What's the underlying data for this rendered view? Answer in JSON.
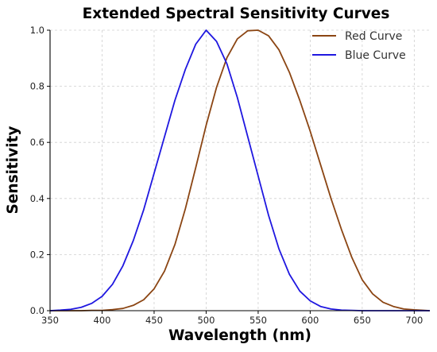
{
  "chart_data": {
    "type": "line",
    "title": "Extended Spectral Sensitivity Curves",
    "xlabel": "Wavelength (nm)",
    "ylabel": "Sensitivity",
    "xlim": [
      350,
      715
    ],
    "ylim": [
      0,
      1.0
    ],
    "xticks": [
      350,
      400,
      450,
      500,
      550,
      600,
      650,
      700
    ],
    "yticks": [
      0.0,
      0.2,
      0.4,
      0.6,
      0.8,
      1.0
    ],
    "xtick_labels": [
      "350",
      "400",
      "450",
      "500",
      "550",
      "600",
      "650",
      "700"
    ],
    "ytick_labels": [
      "0.0",
      "0.2",
      "0.4",
      "0.6",
      "0.8",
      "1.0"
    ],
    "grid": true,
    "legend_position": "top-right",
    "series": [
      {
        "name": "Red Curve",
        "color": "#8B4513",
        "x": [
          350,
          360,
          370,
          380,
          390,
          400,
          410,
          420,
          430,
          440,
          450,
          460,
          470,
          480,
          490,
          500,
          510,
          520,
          530,
          540,
          550,
          560,
          570,
          580,
          590,
          600,
          610,
          620,
          630,
          640,
          650,
          660,
          670,
          680,
          690,
          700,
          710,
          715
        ],
        "y": [
          0.0,
          0.0,
          0.0,
          0.0,
          0.001,
          0.001,
          0.004,
          0.008,
          0.019,
          0.039,
          0.078,
          0.141,
          0.236,
          0.363,
          0.51,
          0.661,
          0.796,
          0.902,
          0.969,
          0.998,
          1.0,
          0.98,
          0.93,
          0.85,
          0.75,
          0.64,
          0.52,
          0.4,
          0.29,
          0.19,
          0.11,
          0.06,
          0.03,
          0.015,
          0.006,
          0.003,
          0.001,
          0.0
        ]
      },
      {
        "name": "Blue Curve",
        "color": "#1F17E0",
        "x": [
          350,
          360,
          370,
          380,
          390,
          400,
          410,
          420,
          430,
          440,
          450,
          460,
          470,
          480,
          490,
          500,
          510,
          520,
          530,
          540,
          550,
          560,
          570,
          580,
          590,
          600,
          610,
          620,
          630,
          640,
          650,
          660,
          670,
          680,
          690,
          700,
          710,
          715
        ],
        "y": [
          0.0,
          0.002,
          0.005,
          0.012,
          0.026,
          0.051,
          0.094,
          0.16,
          0.25,
          0.36,
          0.49,
          0.62,
          0.75,
          0.86,
          0.95,
          1.0,
          0.96,
          0.88,
          0.76,
          0.62,
          0.48,
          0.34,
          0.22,
          0.13,
          0.07,
          0.035,
          0.015,
          0.006,
          0.002,
          0.001,
          0.0,
          0.0,
          0.0,
          0.0,
          0.0,
          0.0,
          0.0,
          0.0
        ]
      }
    ]
  }
}
